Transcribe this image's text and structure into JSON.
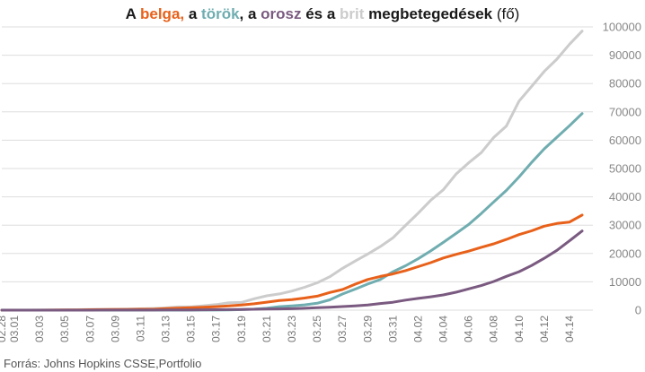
{
  "chart_data": {
    "type": "line",
    "title_parts": [
      {
        "text": "A ",
        "key": "plain"
      },
      {
        "text": "belga,",
        "key": "belgium"
      },
      {
        "text": " a ",
        "key": "plain"
      },
      {
        "text": "török",
        "key": "turkey"
      },
      {
        "text": ", a ",
        "key": "plain"
      },
      {
        "text": "orosz",
        "key": "russia"
      },
      {
        "text": " és a ",
        "key": "plain"
      },
      {
        "text": "brit",
        "key": "uk"
      },
      {
        "text": " megbetegedések",
        "key": "plain"
      },
      {
        "text": " (fő)",
        "key": "light"
      }
    ],
    "source": "Forrás: Johns Hopkins CSSE,Portfolio",
    "xlabel": "",
    "ylabel": "",
    "ylim": [
      0,
      100000
    ],
    "yticks": [
      0,
      10000,
      20000,
      30000,
      40000,
      50000,
      60000,
      70000,
      80000,
      90000,
      100000
    ],
    "grid": true,
    "dates": [
      "2020-02-28",
      "2020-03-01",
      "2020-03-02",
      "2020-03-03",
      "2020-03-04",
      "2020-03-05",
      "2020-03-06",
      "2020-03-07",
      "2020-03-08",
      "2020-03-09",
      "2020-03-10",
      "2020-03-11",
      "2020-03-12",
      "2020-03-13",
      "2020-03-14",
      "2020-03-15",
      "2020-03-16",
      "2020-03-17",
      "2020-03-18",
      "2020-03-19",
      "2020-03-20",
      "2020-03-21",
      "2020-03-22",
      "2020-03-23",
      "2020-03-24",
      "2020-03-25",
      "2020-03-26",
      "2020-03-27",
      "2020-03-28",
      "2020-03-29",
      "2020-03-30",
      "2020-03-31",
      "2020-04-01",
      "2020-04-02",
      "2020-04-03",
      "2020-04-04",
      "2020-04-05",
      "2020-04-06",
      "2020-04-07",
      "2020-04-08",
      "2020-04-09",
      "2020-04-10",
      "2020-04-11",
      "2020-04-12",
      "2020-04-13",
      "2020-04-14",
      "2020-04-15"
    ],
    "xtick_labels": [
      "02.28",
      "03.01",
      "03.03",
      "03.05",
      "03.07",
      "03.09",
      "03.11",
      "03.13",
      "03.15",
      "03.17",
      "03.19",
      "03.21",
      "03.23",
      "03.25",
      "03.27",
      "03.29",
      "03.31",
      "04.02",
      "04.04",
      "04.06",
      "04.08",
      "04.10",
      "04.12",
      "04.14"
    ],
    "colors": {
      "belgium": "#e8611a",
      "turkey": "#70adb0",
      "russia": "#7a5a80",
      "uk": "#cccccc",
      "plain": "#1a1a1a"
    },
    "series": [
      {
        "key": "uk",
        "values": [
          20,
          40,
          40,
          50,
          90,
          120,
          160,
          210,
          280,
          320,
          380,
          460,
          590,
          800,
          1140,
          1140,
          1550,
          1960,
          2640,
          2720,
          4010,
          5070,
          5740,
          6730,
          8080,
          9640,
          11810,
          14750,
          17310,
          19800,
          22450,
          25500,
          29900,
          34200,
          38800,
          42500,
          48000,
          52000,
          55600,
          61000,
          65000,
          73800,
          79000,
          84300,
          88600,
          93900,
          98500
        ]
      },
      {
        "key": "turkey",
        "values": [
          0,
          0,
          0,
          0,
          0,
          0,
          0,
          0,
          0,
          0,
          0,
          1,
          1,
          5,
          5,
          6,
          18,
          47,
          98,
          191,
          359,
          670,
          1236,
          1529,
          1872,
          2433,
          3629,
          5698,
          7402,
          9217,
          10827,
          13531,
          15679,
          18135,
          20921,
          23934,
          27069,
          30217,
          34109,
          38226,
          42282,
          47029,
          52167,
          56956,
          61049,
          65111,
          69392
        ]
      },
      {
        "key": "belgium",
        "values": [
          1,
          1,
          8,
          13,
          23,
          50,
          109,
          169,
          200,
          239,
          267,
          314,
          314,
          559,
          689,
          886,
          1058,
          1243,
          1486,
          1795,
          2257,
          2815,
          3401,
          3743,
          4269,
          4937,
          6235,
          7284,
          9134,
          10836,
          11899,
          12775,
          13964,
          15348,
          16770,
          18431,
          19691,
          20814,
          22194,
          23403,
          24983,
          26667,
          28018,
          29647,
          30589,
          31119,
          33573
        ]
      },
      {
        "key": "russia",
        "values": [
          0,
          2,
          3,
          3,
          3,
          4,
          13,
          13,
          17,
          17,
          20,
          28,
          45,
          59,
          63,
          90,
          114,
          147,
          199,
          253,
          306,
          367,
          438,
          495,
          658,
          840,
          1036,
          1264,
          1534,
          1836,
          2337,
          2777,
          3548,
          4149,
          4731,
          5389,
          6343,
          7497,
          8672,
          10131,
          11917,
          13584,
          15770,
          18328,
          21102,
          24490,
          27938
        ]
      }
    ]
  }
}
